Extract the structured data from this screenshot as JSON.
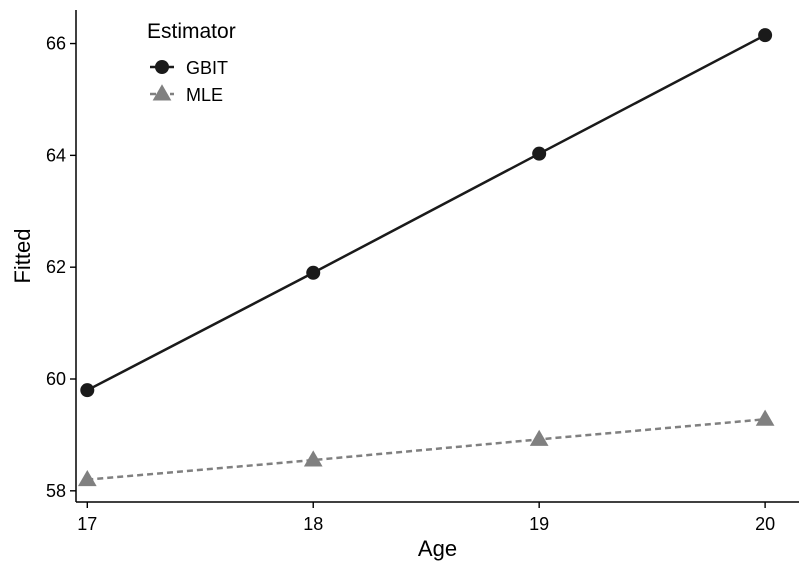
{
  "chart_data": {
    "type": "line",
    "title": "",
    "xlabel": "Age",
    "ylabel": "Fitted",
    "x": [
      17,
      18,
      19,
      20
    ],
    "xlim": [
      16.95,
      20.15
    ],
    "ylim": [
      57.8,
      66.6
    ],
    "xticks": [
      "17",
      "18",
      "19",
      "20"
    ],
    "yticks": [
      "58",
      "60",
      "62",
      "64",
      "66"
    ],
    "grid": false,
    "legend": {
      "title": "Estimator",
      "placement": "top-left"
    },
    "series": [
      {
        "name": "GBIT",
        "values": [
          59.8,
          61.9,
          64.03,
          66.15
        ],
        "color": "#1a1a1a",
        "marker": "circle",
        "line_style": "solid"
      },
      {
        "name": "MLE",
        "values": [
          58.2,
          58.55,
          58.92,
          59.28
        ],
        "color": "#808080",
        "marker": "triangle",
        "line_style": "dashed"
      }
    ]
  }
}
